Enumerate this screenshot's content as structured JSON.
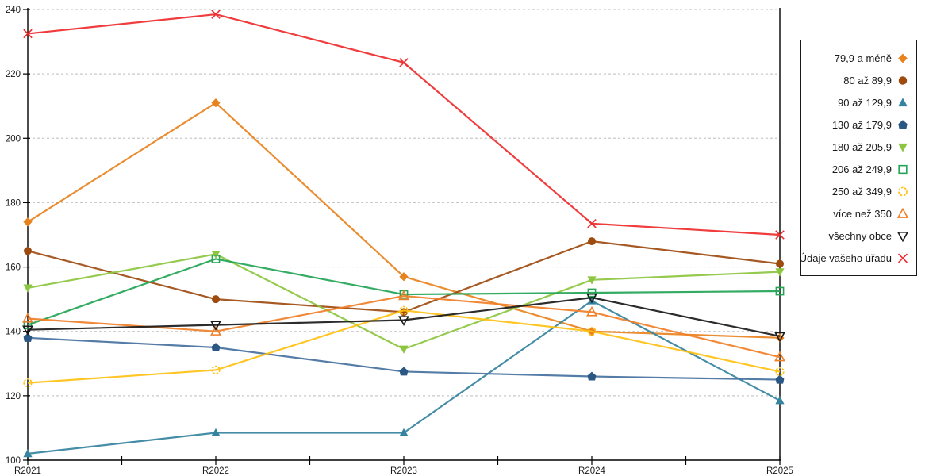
{
  "chart_data": {
    "type": "line",
    "title": "",
    "xlabel": "",
    "ylabel": "",
    "categories": [
      "R2021",
      "R2022",
      "R2023",
      "R2024",
      "R2025"
    ],
    "series": [
      {
        "name": "79,9 a méně",
        "marker": "diamond",
        "filled": true,
        "color": "#E8821D",
        "values": [
          174,
          211,
          157,
          140,
          138
        ]
      },
      {
        "name": "80 až 89,9",
        "marker": "circle",
        "filled": true,
        "color": "#9E4B10",
        "values": [
          165,
          150,
          146,
          168,
          161
        ]
      },
      {
        "name": "90 až 129,9",
        "marker": "triangle-up",
        "filled": true,
        "color": "#35839E",
        "values": [
          102,
          108.5,
          108.5,
          149.5,
          118.5
        ]
      },
      {
        "name": "130 až 179,9",
        "marker": "pentagon",
        "filled": true,
        "color": "#2A5783",
        "line_color": "#46719E",
        "values": [
          138,
          135,
          127.5,
          126,
          125
        ]
      },
      {
        "name": "180 až 205,9",
        "marker": "triangle-down",
        "filled": true,
        "color": "#8CC540",
        "values": [
          153.5,
          164,
          134.5,
          156,
          158.5
        ]
      },
      {
        "name": "206 až 249,9",
        "marker": "square",
        "filled": false,
        "color": "#23A455",
        "values": [
          142,
          162.5,
          151.5,
          152,
          152.5
        ]
      },
      {
        "name": "250 až 349,9",
        "marker": "circle-dashed",
        "filled": false,
        "color": "#FFC114",
        "values": [
          124,
          128,
          146.5,
          140,
          127.5
        ]
      },
      {
        "name": "více než 350",
        "marker": "triangle-up",
        "filled": false,
        "color": "#F07F28",
        "values": [
          144,
          140,
          151,
          146,
          132
        ]
      },
      {
        "name": "všechny obce",
        "marker": "triangle-down",
        "filled": false,
        "color": "#1A1A1A",
        "values": [
          140.5,
          142,
          143.5,
          150.5,
          138.5
        ]
      },
      {
        "name": "Údaje vašeho úřadu",
        "marker": "x",
        "filled": false,
        "color": "#EF2B2D",
        "values": [
          232.5,
          238.5,
          223.5,
          173.5,
          170
        ]
      }
    ],
    "ylim": [
      100,
      240
    ],
    "ytick_step": 20,
    "y_tick_labels": [
      "100",
      "120",
      "140",
      "160",
      "180",
      "200",
      "220",
      "240"
    ],
    "grid": "horizontal-dashed",
    "legend_position": "right"
  },
  "colors": {
    "background": "#FFFFFF",
    "grid": "#C9C9C9",
    "axis": "#000000",
    "tick_text": "#1A1A1A",
    "legend_border": "#1A1A1A"
  }
}
